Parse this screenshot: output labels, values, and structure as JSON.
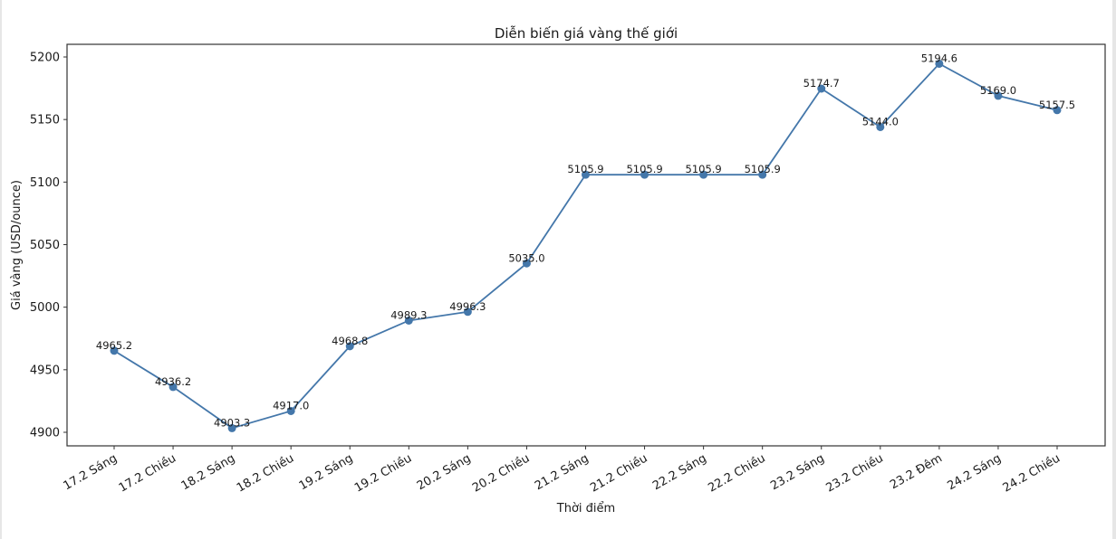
{
  "chart_data": {
    "type": "line",
    "title": "Diễn biến giá vàng thế giới",
    "xlabel": "Thời điểm",
    "ylabel": "Giá vàng (USD/ounce)",
    "categories": [
      "17.2 Sáng",
      "17.2 Chiều",
      "18.2 Sáng",
      "18.2 Chiều",
      "19.2 Sáng",
      "19.2 Chiều",
      "20.2 Sáng",
      "20.2 Chiều",
      "21.2 Sáng",
      "21.2 Chiều",
      "22.2 Sáng",
      "22.2 Chiều",
      "23.2 Sáng",
      "23.2 Chiều",
      "23.2 Đêm",
      "24.2 Sáng",
      "24.2 Chiều"
    ],
    "series": [
      {
        "name": "Giá vàng",
        "values": [
          4965.2,
          4936.2,
          4903.3,
          4917.0,
          4968.8,
          4989.3,
          4996.3,
          5035.0,
          5105.9,
          5105.9,
          5105.9,
          5105.9,
          5174.7,
          5144.0,
          5194.6,
          5169.0,
          5157.5
        ],
        "labels": [
          "4965.2",
          "4936.2",
          "4903.3",
          "4917.0",
          "4968.8",
          "4989.3",
          "4996.3",
          "5035.0",
          "5105.9",
          "5105.9",
          "5105.9",
          "5105.9",
          "5174.7",
          "5144.0",
          "5194.6",
          "5169.0",
          "5157.5"
        ],
        "color": "#4477aa",
        "marker": "circle"
      }
    ],
    "yticks": [
      4900,
      4950,
      5000,
      5050,
      5100,
      5150,
      5200
    ],
    "ytick_labels": [
      "4900",
      "4950",
      "5000",
      "5050",
      "5100",
      "5150",
      "5200"
    ],
    "ylim": [
      4889.6,
      5209.9
    ],
    "grid": false,
    "legend": null
  }
}
